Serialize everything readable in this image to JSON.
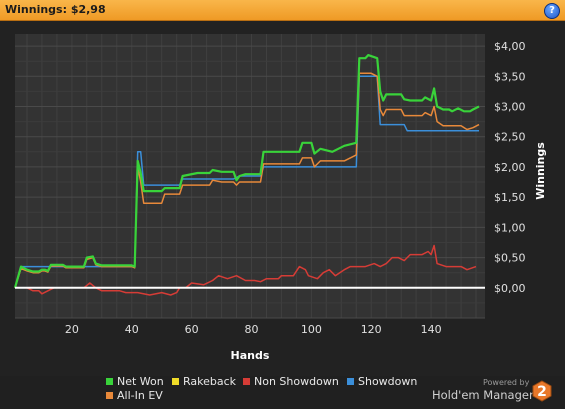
{
  "window": {
    "title": "Winnings: $2,98",
    "help_label": "?"
  },
  "colors": {
    "background": "#222222",
    "plot_background": "#333333",
    "grid": "#444444",
    "zero_line": "#ffffff",
    "title_bar": "#f5a531"
  },
  "chart_data": {
    "type": "line",
    "xlabel": "Hands",
    "ylabel": "Winnings",
    "xlim": [
      1,
      158
    ],
    "ylim": [
      -0.5,
      4.2
    ],
    "x_ticks": [
      20,
      40,
      60,
      80,
      100,
      120,
      140
    ],
    "y_ticks": [
      0,
      0.5,
      1,
      1.5,
      2,
      2.5,
      3,
      3.5,
      4
    ],
    "y_tick_labels": [
      "$0,00",
      "$0,50",
      "$1,00",
      "$1,50",
      "$2,00",
      "$2,50",
      "$3,00",
      "$3,50",
      "$4,00"
    ],
    "grid": true,
    "legend_position": "bottom",
    "series": [
      {
        "name": "Net Won",
        "color": "#39d33a",
        "points": [
          [
            1,
            0.0
          ],
          [
            3,
            0.35
          ],
          [
            5,
            0.3
          ],
          [
            7,
            0.27
          ],
          [
            9,
            0.27
          ],
          [
            10,
            0.3
          ],
          [
            11,
            0.3
          ],
          [
            12,
            0.28
          ],
          [
            13,
            0.38
          ],
          [
            17,
            0.38
          ],
          [
            18,
            0.35
          ],
          [
            24,
            0.35
          ],
          [
            25,
            0.5
          ],
          [
            27,
            0.52
          ],
          [
            28,
            0.4
          ],
          [
            30,
            0.37
          ],
          [
            40,
            0.37
          ],
          [
            41,
            0.35
          ],
          [
            42,
            2.1
          ],
          [
            43,
            1.9
          ],
          [
            44,
            1.6
          ],
          [
            50,
            1.6
          ],
          [
            51,
            1.65
          ],
          [
            56,
            1.65
          ],
          [
            57,
            1.85
          ],
          [
            62,
            1.9
          ],
          [
            66,
            1.9
          ],
          [
            67,
            1.95
          ],
          [
            70,
            1.92
          ],
          [
            74,
            1.92
          ],
          [
            75,
            1.78
          ],
          [
            76,
            1.85
          ],
          [
            78,
            1.88
          ],
          [
            83,
            1.88
          ],
          [
            84,
            2.25
          ],
          [
            96,
            2.25
          ],
          [
            97,
            2.4
          ],
          [
            100,
            2.4
          ],
          [
            101,
            2.22
          ],
          [
            103,
            2.3
          ],
          [
            107,
            2.25
          ],
          [
            111,
            2.35
          ],
          [
            115,
            2.4
          ],
          [
            116,
            3.8
          ],
          [
            118,
            3.8
          ],
          [
            119,
            3.85
          ],
          [
            122,
            3.8
          ],
          [
            123,
            3.25
          ],
          [
            124,
            3.1
          ],
          [
            125,
            3.2
          ],
          [
            130,
            3.2
          ],
          [
            131,
            3.12
          ],
          [
            133,
            3.1
          ],
          [
            137,
            3.1
          ],
          [
            138,
            3.15
          ],
          [
            140,
            3.1
          ],
          [
            141,
            3.3
          ],
          [
            142,
            3.0
          ],
          [
            144,
            2.95
          ],
          [
            146,
            2.95
          ],
          [
            147,
            2.92
          ],
          [
            149,
            2.97
          ],
          [
            151,
            2.92
          ],
          [
            153,
            2.92
          ],
          [
            154,
            2.95
          ],
          [
            156,
            3.0
          ]
        ]
      },
      {
        "name": "Rakeback",
        "color": "#f0dc28",
        "points": [
          [
            1,
            0.0
          ],
          [
            158,
            0.0
          ]
        ]
      },
      {
        "name": "Non Showdown",
        "color": "#d63c36",
        "points": [
          [
            1,
            0.0
          ],
          [
            5,
            0.0
          ],
          [
            7,
            -0.05
          ],
          [
            9,
            -0.05
          ],
          [
            10,
            -0.1
          ],
          [
            12,
            -0.05
          ],
          [
            14,
            0.0
          ],
          [
            24,
            0.0
          ],
          [
            26,
            0.08
          ],
          [
            28,
            0.0
          ],
          [
            30,
            -0.05
          ],
          [
            36,
            -0.05
          ],
          [
            38,
            -0.08
          ],
          [
            42,
            -0.08
          ],
          [
            46,
            -0.12
          ],
          [
            50,
            -0.08
          ],
          [
            53,
            -0.12
          ],
          [
            55,
            -0.08
          ],
          [
            56,
            0.0
          ],
          [
            58,
            0.0
          ],
          [
            60,
            0.08
          ],
          [
            64,
            0.05
          ],
          [
            67,
            0.12
          ],
          [
            69,
            0.2
          ],
          [
            72,
            0.15
          ],
          [
            75,
            0.2
          ],
          [
            78,
            0.12
          ],
          [
            81,
            0.12
          ],
          [
            83,
            0.1
          ],
          [
            85,
            0.15
          ],
          [
            89,
            0.15
          ],
          [
            90,
            0.2
          ],
          [
            94,
            0.2
          ],
          [
            96,
            0.35
          ],
          [
            98,
            0.3
          ],
          [
            99,
            0.2
          ],
          [
            102,
            0.15
          ],
          [
            104,
            0.25
          ],
          [
            106,
            0.3
          ],
          [
            108,
            0.2
          ],
          [
            111,
            0.3
          ],
          [
            113,
            0.35
          ],
          [
            118,
            0.35
          ],
          [
            121,
            0.4
          ],
          [
            123,
            0.35
          ],
          [
            125,
            0.4
          ],
          [
            127,
            0.5
          ],
          [
            129,
            0.5
          ],
          [
            131,
            0.45
          ],
          [
            133,
            0.55
          ],
          [
            137,
            0.55
          ],
          [
            139,
            0.6
          ],
          [
            140,
            0.55
          ],
          [
            141,
            0.7
          ],
          [
            142,
            0.4
          ],
          [
            145,
            0.35
          ],
          [
            150,
            0.35
          ],
          [
            152,
            0.3
          ],
          [
            155,
            0.35
          ]
        ]
      },
      {
        "name": "Showdown",
        "color": "#3b8fda",
        "points": [
          [
            1,
            0.0
          ],
          [
            3,
            0.35
          ],
          [
            40,
            0.35
          ],
          [
            41,
            0.35
          ],
          [
            42,
            2.25
          ],
          [
            43,
            2.25
          ],
          [
            44,
            1.7
          ],
          [
            56,
            1.7
          ],
          [
            57,
            1.8
          ],
          [
            62,
            1.8
          ],
          [
            74,
            1.8
          ],
          [
            76,
            1.85
          ],
          [
            83,
            1.85
          ],
          [
            84,
            2.0
          ],
          [
            115,
            2.0
          ],
          [
            116,
            3.5
          ],
          [
            119,
            3.5
          ],
          [
            122,
            3.5
          ],
          [
            123,
            2.7
          ],
          [
            131,
            2.7
          ],
          [
            132,
            2.6
          ],
          [
            156,
            2.6
          ]
        ]
      },
      {
        "name": "All-In EV",
        "color": "#e8893a",
        "points": [
          [
            1,
            0.0
          ],
          [
            3,
            0.32
          ],
          [
            5,
            0.28
          ],
          [
            7,
            0.25
          ],
          [
            9,
            0.25
          ],
          [
            10,
            0.28
          ],
          [
            11,
            0.28
          ],
          [
            12,
            0.26
          ],
          [
            13,
            0.36
          ],
          [
            17,
            0.36
          ],
          [
            18,
            0.33
          ],
          [
            24,
            0.33
          ],
          [
            25,
            0.47
          ],
          [
            27,
            0.5
          ],
          [
            28,
            0.38
          ],
          [
            30,
            0.35
          ],
          [
            40,
            0.35
          ],
          [
            41,
            0.33
          ],
          [
            42,
            2.0
          ],
          [
            43,
            1.75
          ],
          [
            44,
            1.4
          ],
          [
            50,
            1.4
          ],
          [
            51,
            1.55
          ],
          [
            56,
            1.55
          ],
          [
            57,
            1.7
          ],
          [
            66,
            1.7
          ],
          [
            67,
            1.78
          ],
          [
            70,
            1.75
          ],
          [
            74,
            1.75
          ],
          [
            75,
            1.7
          ],
          [
            76,
            1.75
          ],
          [
            83,
            1.75
          ],
          [
            84,
            2.05
          ],
          [
            96,
            2.05
          ],
          [
            97,
            2.15
          ],
          [
            100,
            2.15
          ],
          [
            101,
            2.0
          ],
          [
            103,
            2.1
          ],
          [
            111,
            2.1
          ],
          [
            115,
            2.2
          ],
          [
            116,
            3.55
          ],
          [
            120,
            3.55
          ],
          [
            122,
            3.5
          ],
          [
            123,
            2.95
          ],
          [
            124,
            2.85
          ],
          [
            125,
            2.95
          ],
          [
            130,
            2.95
          ],
          [
            131,
            2.85
          ],
          [
            137,
            2.85
          ],
          [
            138,
            2.9
          ],
          [
            140,
            2.85
          ],
          [
            141,
            3.0
          ],
          [
            142,
            2.75
          ],
          [
            144,
            2.68
          ],
          [
            150,
            2.68
          ],
          [
            152,
            2.62
          ],
          [
            154,
            2.65
          ],
          [
            156,
            2.7
          ]
        ]
      }
    ]
  },
  "legend": [
    {
      "label": "Net Won",
      "color": "#39d33a"
    },
    {
      "label": "Rakeback",
      "color": "#f0dc28"
    },
    {
      "label": "Non Showdown",
      "color": "#d63c36"
    },
    {
      "label": "Showdown",
      "color": "#3b8fda"
    },
    {
      "label": "All-In EV",
      "color": "#e8893a"
    }
  ],
  "branding": {
    "powered_by": "Powered by",
    "product": "Hold'em Manager",
    "logo_text": "2",
    "logo_color": "#e8782a"
  }
}
